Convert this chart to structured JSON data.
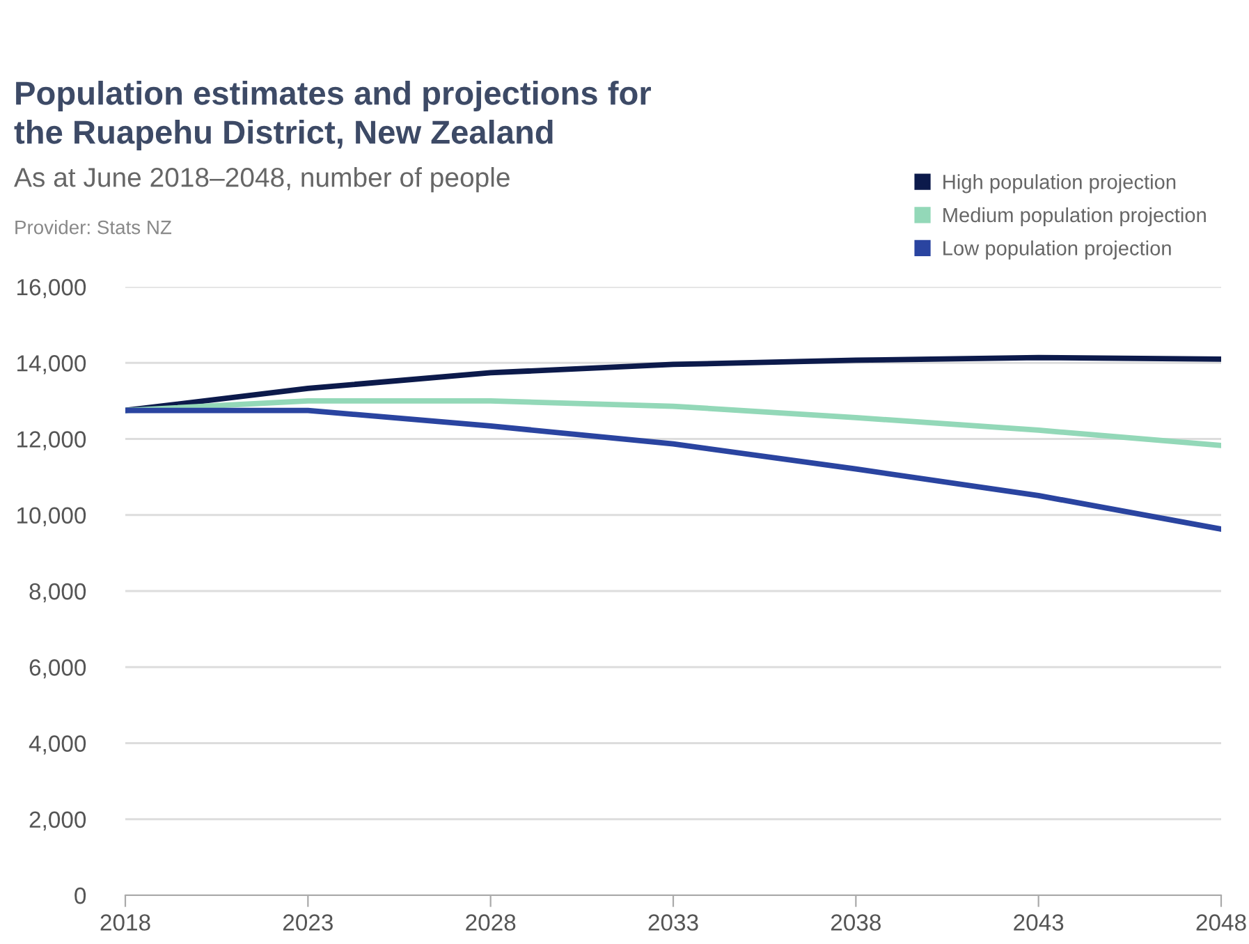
{
  "chart_data": {
    "type": "line",
    "title": "Population estimates and projections for\nthe Ruapehu District, New Zealand",
    "subtitle": "As at June 2018–2048, number of people",
    "annotations": [
      "Provider: Stats NZ"
    ],
    "x": [
      2018,
      2023,
      2028,
      2033,
      2038,
      2043,
      2048
    ],
    "series": [
      {
        "name": "High population projection",
        "color": "#0c1a4b",
        "values": [
          12750,
          13330,
          13740,
          13960,
          14070,
          14140,
          14100
        ]
      },
      {
        "name": "Medium population projection",
        "color": "#93d8b8",
        "values": [
          12750,
          13000,
          13000,
          12860,
          12560,
          12230,
          11830
        ]
      },
      {
        "name": "Low population projection",
        "color": "#2a44a0",
        "values": [
          12750,
          12750,
          12340,
          11870,
          11210,
          10510,
          9630
        ]
      }
    ],
    "xlim": [
      2018,
      2048
    ],
    "xticks": [
      2018,
      2023,
      2028,
      2033,
      2038,
      2043,
      2048
    ],
    "ylim": [
      0,
      16000
    ],
    "yticks": [
      {
        "value": 0,
        "label": "0"
      },
      {
        "value": 2000,
        "label": "2,000"
      },
      {
        "value": 4000,
        "label": "4,000"
      },
      {
        "value": 6000,
        "label": "6,000"
      },
      {
        "value": 8000,
        "label": "8,000"
      },
      {
        "value": 10000,
        "label": "10,000"
      },
      {
        "value": 12000,
        "label": "12,000"
      },
      {
        "value": 14000,
        "label": "14,000"
      },
      {
        "value": 16000,
        "label": "16,000"
      }
    ],
    "grid": "y",
    "legend": "top right",
    "marker": "none",
    "line_style": "solid"
  }
}
